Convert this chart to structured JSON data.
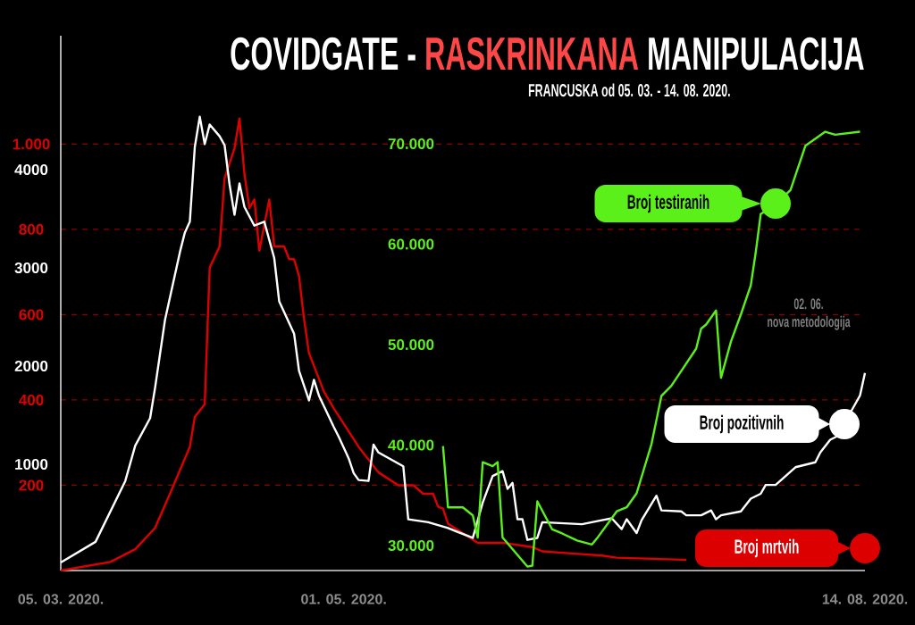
{
  "chart_data": {
    "type": "line",
    "title": "COVIDGATE -  **RASKRINKANA** MANIPULACIJA",
    "subtitle": "FRANCUSKA od 05. 03. - 14. 08. 2020.",
    "annotations": [
      "02. 06.",
      "nova metodologija"
    ],
    "xlim": [
      "2020-03-05",
      "2020-08-14"
    ],
    "xticks": [
      {
        "value": "2020-03-05",
        "label": "05. 03. 2020."
      },
      {
        "value": "2020-05-01",
        "label": "01. 05. 2020."
      },
      {
        "value": "2020-08-14",
        "label": "14. 08. 2020."
      }
    ],
    "ylim": [
      0,
      1254
    ],
    "yticks": [
      200,
      400,
      600,
      800,
      {
        "value": 1000,
        "label": "1.000"
      }
    ],
    "y2lim": [
      -82,
      5364
    ],
    "y2ticks": [
      1000,
      2000,
      3000,
      4000
    ],
    "y3lim": [
      27510,
      80760
    ],
    "y3ticks": [
      {
        "value": 30000,
        "label": "30.000"
      },
      {
        "value": 40000,
        "label": "40.000"
      },
      {
        "value": 50000,
        "label": "50.000"
      },
      {
        "value": 60000,
        "label": "60.000"
      },
      {
        "value": 70000,
        "label": "70.000"
      }
    ],
    "grid": "y",
    "legend": "right",
    "series": [
      {
        "name": "Broj testiranih",
        "color": "#5cf01a",
        "axis": "y3",
        "x": [
          "2020-05-21",
          "2020-05-22",
          "2020-05-25",
          "2020-05-27",
          "2020-05-28",
          "2020-05-29",
          "2020-05-31",
          "2020-06-01",
          "2020-06-02",
          "2020-06-07",
          "2020-06-08",
          "2020-06-09",
          "2020-06-12",
          "2020-06-14",
          "2020-06-17",
          "2020-06-20",
          "2020-06-21",
          "2020-06-25",
          "2020-06-27",
          "2020-06-29",
          "2020-07-02",
          "2020-07-04",
          "2020-07-06",
          "2020-07-11",
          "2020-07-12",
          "2020-07-13",
          "2020-07-15",
          "2020-07-16",
          "2020-07-18",
          "2020-07-20",
          "2020-07-22",
          "2020-07-23",
          "2020-07-24",
          "2020-07-27",
          "2020-07-30",
          "2020-08-02",
          "2020-08-06",
          "2020-08-08",
          "2020-08-13"
        ],
        "values": [
          39900,
          33800,
          33800,
          33000,
          30800,
          38300,
          37900,
          38300,
          30800,
          27900,
          28000,
          34400,
          31600,
          31200,
          30500,
          30100,
          30700,
          33400,
          33800,
          35200,
          40100,
          44900,
          45900,
          49600,
          51600,
          52000,
          53400,
          46700,
          50300,
          53000,
          55900,
          59200,
          63000,
          64000,
          65400,
          69800,
          71200,
          70900,
          71200
        ]
      },
      {
        "name": "Broj pozitivnih",
        "color": "#ffffff",
        "axis": "y2",
        "x": [
          "2020-03-05",
          "2020-03-12",
          "2020-03-18",
          "2020-03-20",
          "2020-03-23",
          "2020-03-24",
          "2020-03-26",
          "2020-03-29",
          "2020-03-30",
          "2020-03-31",
          "2020-04-01",
          "2020-04-02",
          "2020-04-03",
          "2020-04-04",
          "2020-04-06",
          "2020-04-07",
          "2020-04-08",
          "2020-04-09",
          "2020-04-10",
          "2020-04-11",
          "2020-04-13",
          "2020-04-15",
          "2020-04-17",
          "2020-04-18",
          "2020-04-21",
          "2020-04-22",
          "2020-04-24",
          "2020-04-25",
          "2020-04-26",
          "2020-04-29",
          "2020-04-30",
          "2020-05-02",
          "2020-05-03",
          "2020-05-04",
          "2020-05-06",
          "2020-05-07",
          "2020-05-08",
          "2020-05-13",
          "2020-05-14",
          "2020-05-18",
          "2020-05-22",
          "2020-05-27",
          "2020-05-29",
          "2020-05-31",
          "2020-06-02",
          "2020-06-03",
          "2020-06-04",
          "2020-06-05",
          "2020-06-06",
          "2020-06-07",
          "2020-06-09",
          "2020-06-10",
          "2020-06-18",
          "2020-06-20",
          "2020-06-22",
          "2020-06-24",
          "2020-06-26",
          "2020-06-27",
          "2020-06-29",
          "2020-06-30",
          "2020-07-03",
          "2020-07-04",
          "2020-07-08",
          "2020-07-09",
          "2020-07-12",
          "2020-07-14",
          "2020-07-15",
          "2020-07-16",
          "2020-07-20",
          "2020-07-22",
          "2020-07-24",
          "2020-07-25",
          "2020-07-27",
          "2020-07-31",
          "2020-08-04",
          "2020-08-05",
          "2020-08-07",
          "2020-08-09",
          "2020-08-11",
          "2020-08-13",
          "2020-08-14"
        ],
        "values": [
          0,
          210,
          830,
          1190,
          1470,
          1780,
          2470,
          3160,
          3360,
          3470,
          4230,
          4540,
          4260,
          4460,
          4340,
          4250,
          3850,
          3540,
          3860,
          3620,
          3430,
          3470,
          3100,
          2660,
          2330,
          1950,
          1650,
          1860,
          1700,
          1380,
          1280,
          1060,
          910,
          840,
          830,
          1200,
          1120,
          980,
          440,
          410,
          350,
          250,
          610,
          880,
          930,
          750,
          810,
          440,
          440,
          230,
          250,
          410,
          390,
          410,
          430,
          450,
          340,
          440,
          300,
          430,
          680,
          530,
          520,
          480,
          480,
          530,
          440,
          480,
          520,
          650,
          700,
          790,
          790,
          970,
          1020,
          1120,
          1250,
          1300,
          1520,
          1700,
          1930
        ]
      },
      {
        "name": "Broj mrtvih",
        "color": "#dd0000",
        "axis": "y",
        "x": [
          "2020-03-05",
          "2020-03-15",
          "2020-03-20",
          "2020-03-24",
          "2020-03-27",
          "2020-03-31",
          "2020-04-01",
          "2020-04-03",
          "2020-04-04",
          "2020-04-06",
          "2020-04-07",
          "2020-04-09",
          "2020-04-10",
          "2020-04-11",
          "2020-04-12",
          "2020-04-13",
          "2020-04-14",
          "2020-04-16",
          "2020-04-17",
          "2020-04-19",
          "2020-04-20",
          "2020-04-21",
          "2020-04-22",
          "2020-04-23",
          "2020-04-24",
          "2020-04-27",
          "2020-04-29",
          "2020-05-04",
          "2020-05-08",
          "2020-05-12",
          "2020-05-15",
          "2020-05-17",
          "2020-05-19",
          "2020-05-20",
          "2020-05-21",
          "2020-05-22",
          "2020-05-28",
          "2020-06-02",
          "2020-06-08",
          "2020-06-10",
          "2020-06-16",
          "2020-06-22",
          "2020-06-25",
          "2020-07-09"
        ],
        "values": [
          0,
          20,
          50,
          100,
          180,
          290,
          360,
          390,
          710,
          760,
          920,
          990,
          1060,
          930,
          850,
          870,
          750,
          870,
          760,
          760,
          730,
          730,
          690,
          590,
          510,
          420,
          380,
          290,
          230,
          200,
          200,
          180,
          180,
          150,
          145,
          110,
          65,
          65,
          55,
          45,
          40,
          35,
          30,
          25
        ]
      }
    ]
  }
}
